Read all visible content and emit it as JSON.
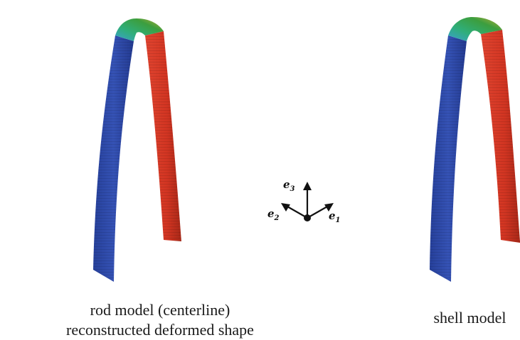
{
  "panels": [
    {
      "id": "rod",
      "caption_lines": [
        "rod model (centerline)",
        "reconstructed deformed shape"
      ]
    },
    {
      "id": "shell",
      "caption_lines": [
        "shell model"
      ]
    }
  ],
  "axes": {
    "e1": {
      "base": "e",
      "sub": "1"
    },
    "e2": {
      "base": "e",
      "sub": "2"
    },
    "e3": {
      "base": "e",
      "sub": "3"
    }
  },
  "colors": {
    "left_leg": "#2e48a8",
    "left_leg_dark": "#1f3488",
    "right_leg": "#d63a28",
    "right_leg_dark": "#b02a1c",
    "top_green": "#3aa35a",
    "top_cyan": "#2f9ac9",
    "top_yellow": "#c9b43a"
  }
}
